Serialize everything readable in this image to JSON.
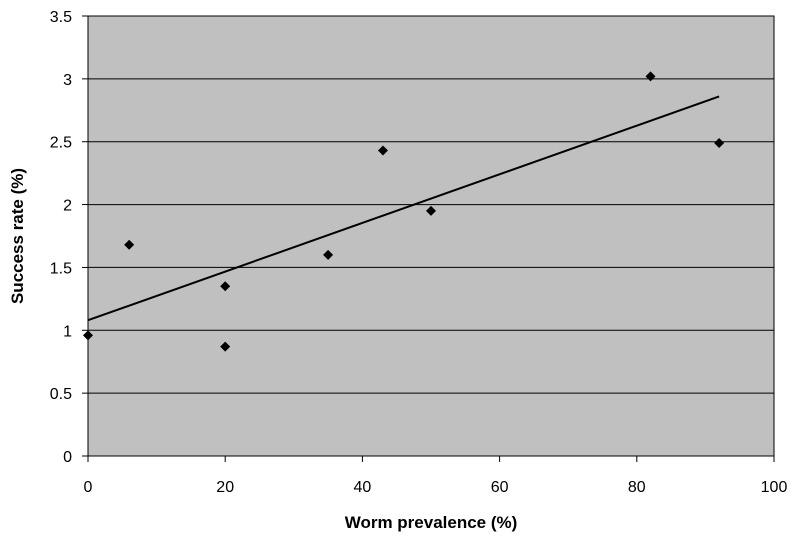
{
  "chart_data": {
    "type": "scatter",
    "xlabel": "Worm prevalence (%)",
    "ylabel": "Success rate (%)",
    "xlim": [
      0,
      100
    ],
    "ylim": [
      0,
      3.5
    ],
    "x_ticks": [
      0,
      20,
      40,
      60,
      80,
      100
    ],
    "y_ticks": [
      0,
      0.5,
      1,
      1.5,
      2,
      2.5,
      3,
      3.5
    ],
    "x_tick_labels": [
      "0",
      "20",
      "40",
      "60",
      "80",
      "100"
    ],
    "y_tick_labels": [
      "0",
      "0.5",
      "1",
      "1.5",
      "2",
      "2.5",
      "3",
      "3.5"
    ],
    "grid": "horizontal",
    "legend": "none",
    "points": [
      {
        "x": 0,
        "y": 0.96
      },
      {
        "x": 6,
        "y": 1.68
      },
      {
        "x": 20,
        "y": 1.35
      },
      {
        "x": 20,
        "y": 0.87
      },
      {
        "x": 35,
        "y": 1.6
      },
      {
        "x": 43,
        "y": 2.43
      },
      {
        "x": 50,
        "y": 1.95
      },
      {
        "x": 82,
        "y": 3.02
      },
      {
        "x": 92,
        "y": 2.49
      }
    ],
    "trendline": {
      "x": [
        0,
        92
      ],
      "y": [
        1.08,
        2.86
      ]
    },
    "colors": {
      "plot_background": "#c0c0c0",
      "gridline": "#000000",
      "marker": "#000000",
      "trendline": "#000000"
    }
  }
}
